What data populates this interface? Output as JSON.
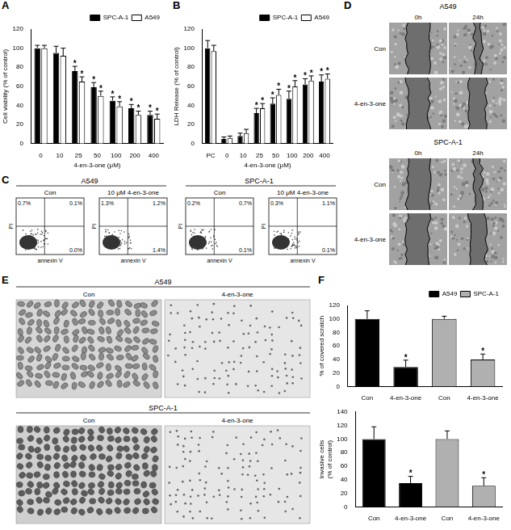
{
  "chart_data": [
    {
      "panel": "A",
      "type": "bar",
      "x_label": "4-en-3-one (μM)",
      "y_label": "Cell viability (% of control)",
      "categories": [
        "0",
        "10",
        "25",
        "50",
        "100",
        "200",
        "400"
      ],
      "series": [
        {
          "name": "SPC-A-1",
          "color": "#000000",
          "values": [
            100,
            95,
            76,
            59,
            45,
            37,
            30
          ],
          "errors": [
            3,
            7,
            5,
            5,
            4,
            4,
            4
          ],
          "annotations": [
            null,
            null,
            "*",
            "*",
            "*",
            "*",
            "*"
          ]
        },
        {
          "name": "A549",
          "color": "#ffffff",
          "values": [
            100,
            92,
            65,
            50,
            39,
            30,
            26
          ],
          "errors": [
            3,
            8,
            5,
            5,
            5,
            4,
            5
          ],
          "annotations": [
            null,
            null,
            "*",
            "*",
            "*",
            "*",
            "*"
          ]
        }
      ],
      "ylim": [
        0,
        120
      ],
      "yticks": [
        0,
        20,
        40,
        60,
        80,
        100,
        120
      ],
      "grid": false,
      "legend": "top-right"
    },
    {
      "panel": "B",
      "type": "bar",
      "x_label": "4-en-3-one (μM)",
      "y_label": "LDH Release (% of control)",
      "categories": [
        "PC",
        "0",
        "10",
        "25",
        "50",
        "100",
        "200",
        "400"
      ],
      "series": [
        {
          "name": "SPC-A-1",
          "color": "#000000",
          "values": [
            100,
            5,
            8,
            32,
            42,
            47,
            62,
            65
          ],
          "errors": [
            8,
            2,
            3,
            5,
            6,
            8,
            6,
            7
          ],
          "annotations": [
            null,
            null,
            null,
            "*",
            "*",
            "*",
            "*",
            "*"
          ]
        },
        {
          "name": "A549",
          "color": "#ffffff",
          "values": [
            97,
            6,
            11,
            37,
            51,
            60,
            66,
            68
          ],
          "errors": [
            6,
            2,
            4,
            5,
            6,
            6,
            5,
            5
          ],
          "annotations": [
            null,
            null,
            null,
            "*",
            "*",
            "*",
            "*",
            "*"
          ]
        }
      ],
      "ylim": [
        0,
        120
      ],
      "yticks": [
        0,
        20,
        40,
        60,
        80,
        100,
        120
      ],
      "grid": false,
      "legend": "top-right"
    },
    {
      "panel": "F",
      "type": "bar",
      "y_label": "% of covered scratch",
      "categories": [
        "Con",
        "4-en-3-one",
        "Con",
        "4-en-3-one"
      ],
      "series": [
        {
          "name": "A549",
          "color": "#000000",
          "values": [
            100,
            29,
            null,
            null
          ],
          "errors": [
            12,
            10,
            null,
            null
          ],
          "annotations": [
            null,
            "*",
            null,
            null
          ]
        },
        {
          "name": "SPC-A-1",
          "color": "#b0b0b0",
          "values": [
            null,
            null,
            100,
            40
          ],
          "errors": [
            null,
            null,
            4,
            8
          ],
          "annotations": [
            null,
            null,
            null,
            "*"
          ]
        }
      ],
      "ylim": [
        0,
        120
      ],
      "yticks": [
        0,
        20,
        40,
        60,
        80,
        100,
        120
      ],
      "grid": false,
      "legend": "top-right"
    },
    {
      "type": "bar",
      "y_label": "Invasive cells (% of control)",
      "categories": [
        "Con",
        "4-en-3-one",
        "Con",
        "4-en-3-one"
      ],
      "series": [
        {
          "name": "A549",
          "color": "#000000",
          "values": [
            100,
            35,
            null,
            null
          ],
          "errors": [
            18,
            10,
            null,
            null
          ],
          "annotations": [
            null,
            "*",
            null,
            null
          ]
        },
        {
          "name": "SPC-A-1",
          "color": "#b0b0b0",
          "values": [
            null,
            null,
            100,
            31
          ],
          "errors": [
            null,
            null,
            12,
            12
          ],
          "annotations": [
            null,
            null,
            null,
            "*"
          ]
        }
      ],
      "ylim": [
        0,
        140
      ],
      "yticks": [
        0,
        20,
        40,
        60,
        80,
        100,
        120,
        140
      ],
      "grid": false
    }
  ],
  "flow": {
    "panel": "C",
    "x_label": "annexin V",
    "y_label": "PI",
    "groups": [
      {
        "title": "A549",
        "plots": [
          {
            "title": "Con",
            "upper_left": "0.7%",
            "upper_right": "0.1%",
            "lower_right": "0.0%"
          },
          {
            "title": "10 μM 4-en-3-one",
            "upper_left": "1.3%",
            "upper_right": "1.2%",
            "lower_right": "1.4%"
          }
        ]
      },
      {
        "title": "SPC-A-1",
        "plots": [
          {
            "title": "Con",
            "upper_left": "0.2%",
            "upper_right": "0.7%",
            "lower_right": "0.1%"
          },
          {
            "title": "10 μM 4-en-3-one",
            "upper_left": "0.3%",
            "upper_right": "1.1%",
            "lower_right": "0.1%"
          }
        ]
      }
    ]
  },
  "scratch": {
    "panel": "D",
    "groups": [
      {
        "title": "A549",
        "columns": [
          "0h",
          "24h"
        ],
        "rows": [
          "Con",
          "4-en-3-one"
        ]
      },
      {
        "title": "SPC-A-1",
        "columns": [
          "0h",
          "24h"
        ],
        "rows": [
          "Con",
          "4-en-3-one"
        ]
      }
    ]
  },
  "invasion": {
    "panel": "E",
    "groups": [
      {
        "title": "A549",
        "columns": [
          "Con",
          "4-en-3-one"
        ]
      },
      {
        "title": "SPC-A-1",
        "columns": [
          "Con",
          "4-en-3-one"
        ]
      }
    ]
  }
}
